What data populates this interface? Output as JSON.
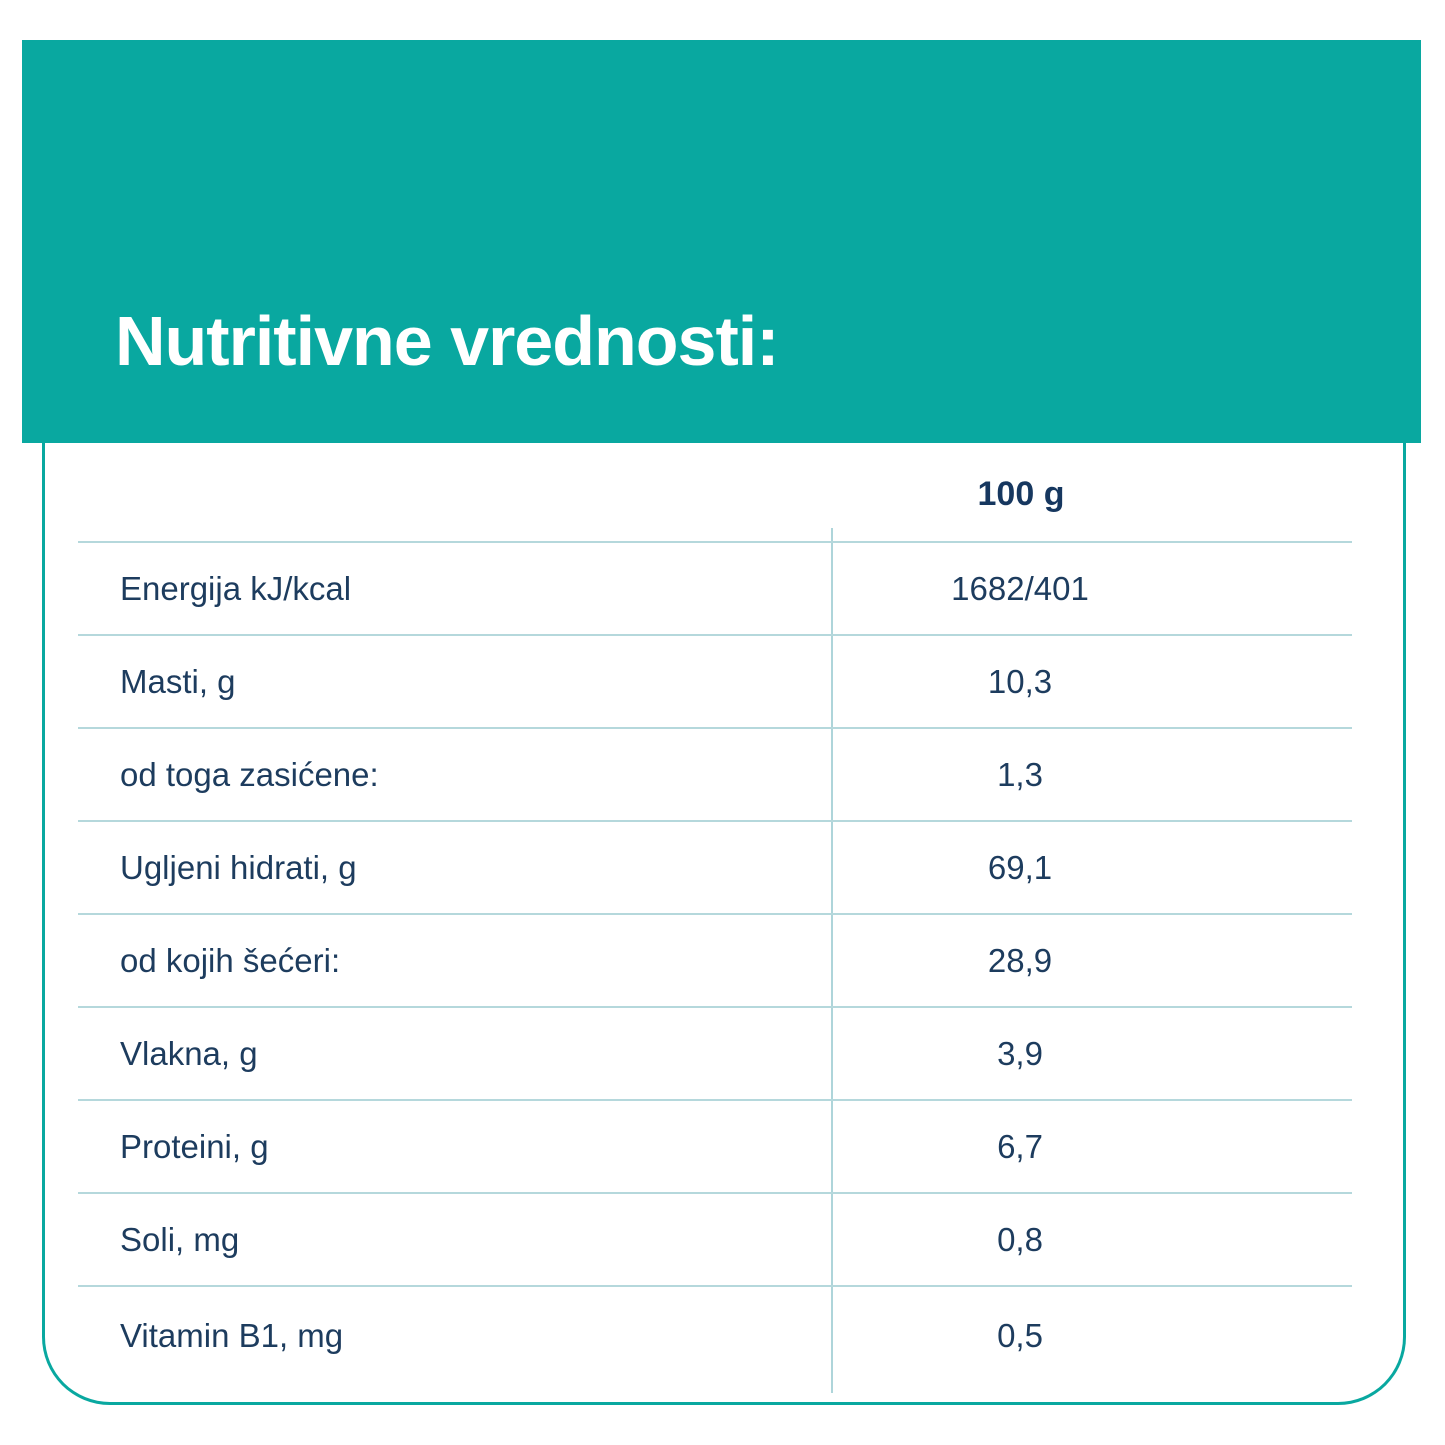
{
  "header": {
    "title": "Nutritivne vrednosti:"
  },
  "table": {
    "column_header": "100 g",
    "rows": [
      {
        "label": "Energija kJ/kcal",
        "value": "1682/401"
      },
      {
        "label": "Masti, g",
        "value": "10,3"
      },
      {
        "label": "od toga zasićene:",
        "value": "1,3"
      },
      {
        "label": "Ugljeni hidrati, g",
        "value": "69,1"
      },
      {
        "label": "od kojih šećeri:",
        "value": "28,9"
      },
      {
        "label": "Vlakna, g",
        "value": "3,9"
      },
      {
        "label": "Proteini, g",
        "value": "6,7"
      },
      {
        "label": "Soli, mg",
        "value": "0,8"
      },
      {
        "label": "Vitamin B1, mg",
        "value": "0,5"
      }
    ]
  },
  "colors": {
    "teal": "#09a8a0",
    "text_navy": "#1d3c5e",
    "separator_light": "#b5d8dc"
  }
}
